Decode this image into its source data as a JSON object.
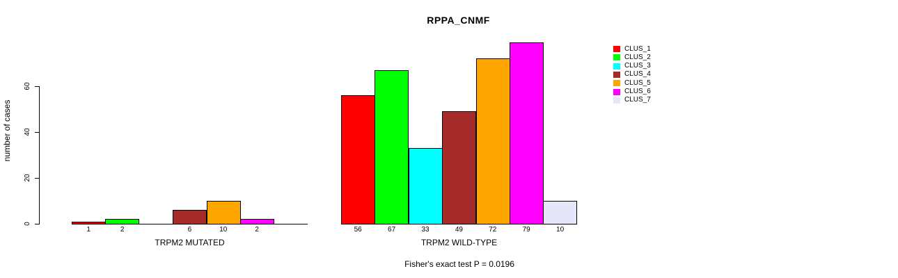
{
  "chart_data": {
    "type": "bar",
    "title": "RPPA_CNMF",
    "ylabel": "number of cases",
    "ylim": [
      0,
      60
    ],
    "yticks": [
      0,
      20,
      40,
      60
    ],
    "grid": false,
    "legend_position": "right",
    "clusters": [
      "CLUS_1",
      "CLUS_2",
      "CLUS_3",
      "CLUS_4",
      "CLUS_5",
      "CLUS_6",
      "CLUS_7"
    ],
    "colors": [
      "#ff0000",
      "#00ff00",
      "#00ffff",
      "#a52a2a",
      "#ffa500",
      "#ff00ff",
      "#e6e6fa"
    ],
    "groups": [
      {
        "label": "TRPM2 MUTATED",
        "values": [
          1,
          2,
          0,
          6,
          10,
          2,
          0
        ],
        "bar_labels": [
          "1",
          "2",
          "",
          "6",
          "10",
          "2",
          ""
        ]
      },
      {
        "label": "TRPM2 WILD-TYPE",
        "values": [
          56,
          67,
          33,
          49,
          72,
          79,
          10
        ],
        "bar_labels": [
          "56",
          "67",
          "33",
          "49",
          "72",
          "79",
          "10"
        ]
      }
    ],
    "annotation": "Fisher's exact test P = 0.0196"
  }
}
